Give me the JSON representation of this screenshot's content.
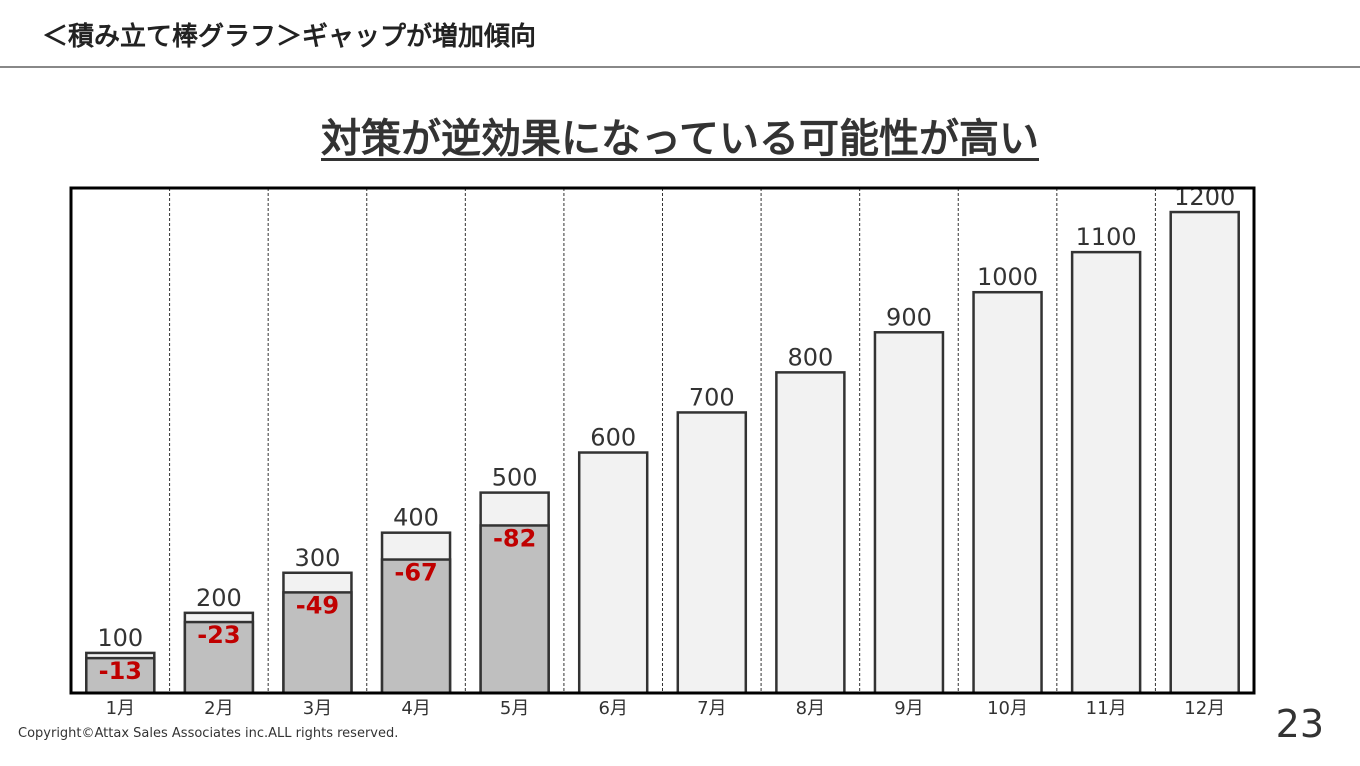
{
  "header": {
    "title": "＜積み立て棒グラフ＞ギャップが増加傾向"
  },
  "chart_data": {
    "type": "bar",
    "title": "対策が逆効果になっている可能性が高い",
    "categories": [
      "1月",
      "2月",
      "3月",
      "4月",
      "5月",
      "6月",
      "7月",
      "8月",
      "9月",
      "10月",
      "11月",
      "12月"
    ],
    "values": [
      100,
      200,
      300,
      400,
      500,
      600,
      700,
      800,
      900,
      1000,
      1100,
      1200
    ],
    "gaps": [
      -13,
      -23,
      -49,
      -67,
      -82,
      null,
      null,
      null,
      null,
      null,
      null,
      null
    ],
    "color": "#f2f2f2",
    "gap_color": "#bfbfbf",
    "gap_label_color": "#c00000",
    "ylim": [
      0,
      1260
    ]
  },
  "footer": {
    "copyright": "Copyright©Attax Sales Associates inc.ALL rights reserved.",
    "page": "23"
  }
}
